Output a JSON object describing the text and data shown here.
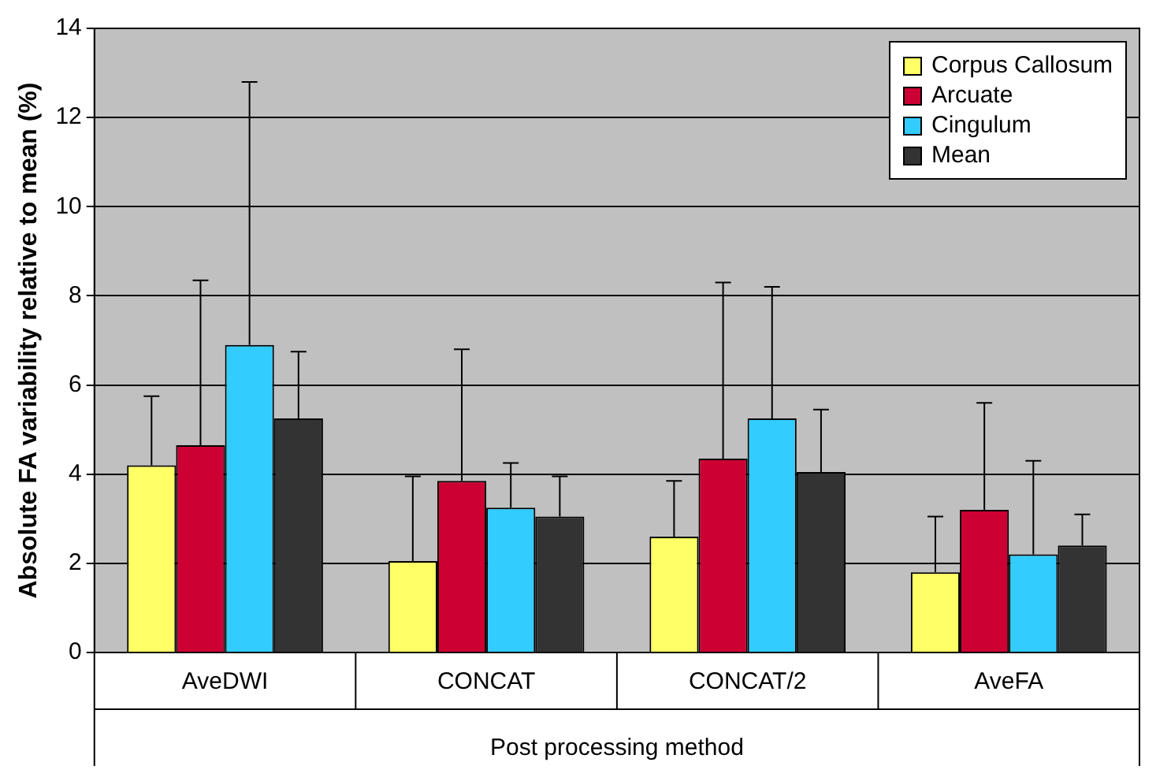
{
  "chart_data": {
    "type": "bar",
    "xlabel": "Post processing method",
    "ylabel": "Absolute FA variability relative to mean (%)",
    "categories": [
      "AveDWI",
      "CONCAT",
      "CONCAT/2",
      "AveFA"
    ],
    "series": [
      {
        "name": "Corpus Callosum",
        "color": "#ffff66",
        "values": [
          4.2,
          2.05,
          2.6,
          1.8
        ],
        "errors": [
          [
            4.2,
            5.75
          ],
          [
            2.05,
            3.95
          ],
          [
            2.6,
            3.85
          ],
          [
            1.8,
            3.05
          ]
        ]
      },
      {
        "name": "Arcuate",
        "color": "#cc0033",
        "values": [
          4.65,
          3.85,
          4.35,
          3.2
        ],
        "errors": [
          [
            4.65,
            8.35
          ],
          [
            3.85,
            6.8
          ],
          [
            4.35,
            8.3
          ],
          [
            3.2,
            5.6
          ]
        ]
      },
      {
        "name": "Cingulum",
        "color": "#33ccff",
        "values": [
          6.9,
          3.25,
          5.25,
          2.2
        ],
        "errors": [
          [
            6.9,
            12.8
          ],
          [
            3.25,
            4.25
          ],
          [
            5.25,
            8.2
          ],
          [
            2.2,
            4.3
          ]
        ]
      },
      {
        "name": "Mean",
        "color": "#333333",
        "values": [
          5.25,
          3.05,
          4.05,
          2.4
        ],
        "errors": [
          [
            5.25,
            6.75
          ],
          [
            3.05,
            3.95
          ],
          [
            4.05,
            5.45
          ],
          [
            2.4,
            3.1
          ]
        ]
      }
    ],
    "ylim": [
      0,
      14
    ],
    "yticks": [
      0,
      2,
      4,
      6,
      8,
      10,
      12,
      14
    ],
    "grid": "y",
    "legend": "top right"
  }
}
